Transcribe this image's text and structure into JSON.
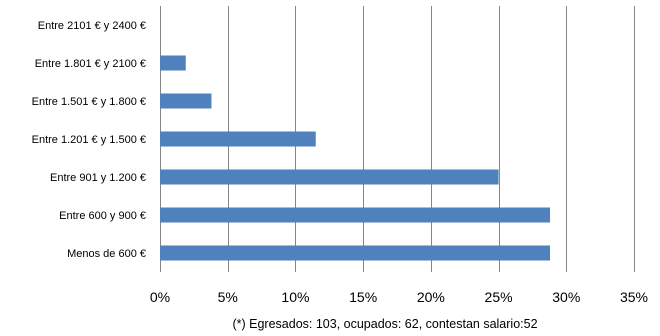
{
  "chart_data": {
    "type": "bar",
    "orientation": "horizontal",
    "categories": [
      "Entre 2101 € y 2400 €",
      "Entre 1.801 € y 2100 €",
      "Entre 1.501 € y 1.800 €",
      "Entre 1.201 € y 1.500 €",
      "Entre 901 y 1.200 €",
      "Entre 600 y  900 €",
      "Menos de 600 €"
    ],
    "values": [
      0,
      1.9,
      3.8,
      11.5,
      25.0,
      28.8,
      28.8
    ],
    "xlim": [
      0,
      35
    ],
    "xticks": [
      0,
      5,
      10,
      15,
      20,
      25,
      30,
      35
    ],
    "xtick_labels": [
      "0%",
      "5%",
      "10%",
      "15%",
      "20%",
      "25%",
      "30%",
      "35%"
    ],
    "grid": "vertical",
    "bar_color": "#4f81bd",
    "footnote": "(*) Egresados: 103, ocupados: 62, contestan salario:52"
  }
}
